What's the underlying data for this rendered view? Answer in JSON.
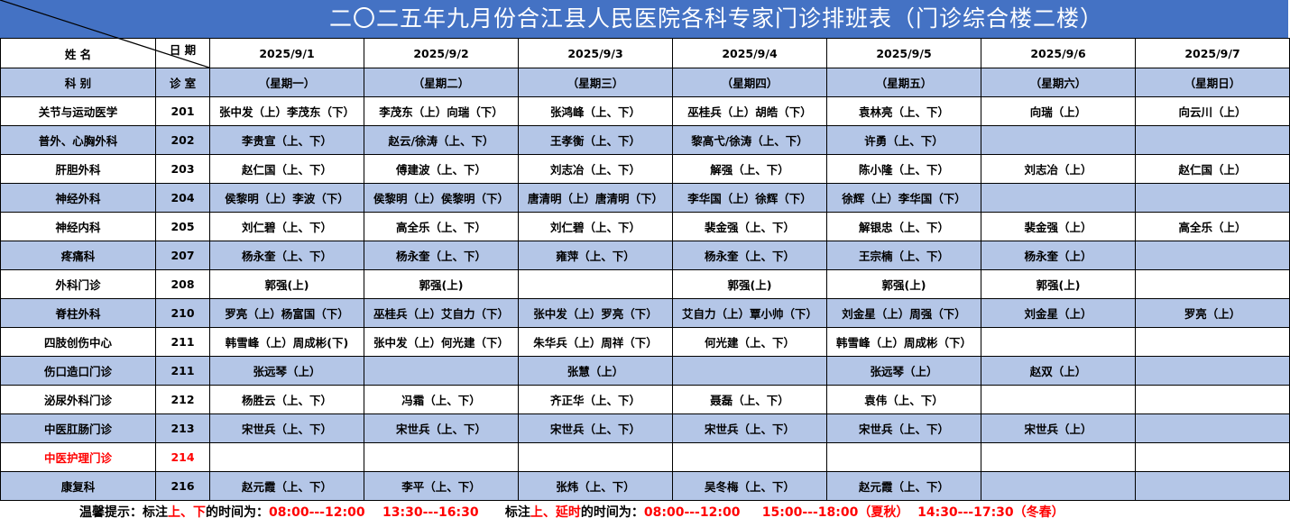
{
  "title": "二〇二五年九月份合江县人民医院各科专家门诊排班表（门诊综合楼二楼）",
  "header": {
    "name_label": "姓  名",
    "date_label": "日 期",
    "dept_label": "科  别",
    "room_label": "诊  室",
    "dates": [
      "2025/9/1",
      "2025/9/2",
      "2025/9/3",
      "2025/9/4",
      "2025/9/5",
      "2025/9/6",
      "2025/9/7"
    ],
    "weekdays": [
      "（星期一）",
      "（星期二）",
      "（星期三）",
      "（星期四）",
      "（星期五）",
      "（星期六）",
      "（星期日）"
    ]
  },
  "rows": [
    {
      "dept": "关节与运动医学",
      "room": "201",
      "cells": [
        "张中发（上）李茂东（下）",
        "李茂东（上）向瑞（下）",
        "张鸿峰（上、下）",
        "巫桂兵（上）胡皓（下）",
        "袁林亮（上、下）",
        "向瑞（上）",
        "向云川（上）"
      ]
    },
    {
      "dept": "普外、心胸外科",
      "room": "202",
      "cells": [
        "李贵宣（上、下）",
        "赵云/徐涛（上、下）",
        "王孝衡（上、下）",
        "黎高弋/徐涛（上、下）",
        "许勇（上、下）",
        "",
        ""
      ]
    },
    {
      "dept": "肝胆外科",
      "room": "203",
      "cells": [
        "赵仁国（上、下）",
        "傅建波（上、下）",
        "刘志冶（上、下）",
        "解强（上、下）",
        "陈小隆（上、下）",
        "刘志冶（上）",
        "赵仁国（上）"
      ]
    },
    {
      "dept": "神经外科",
      "room": "204",
      "cells": [
        "侯黎明（上）李波（下）",
        "侯黎明（上）侯黎明（下）",
        "唐清明（上）唐清明（下）",
        "李华国（上）徐辉（下）",
        "徐辉（上）李华国（下）",
        "",
        ""
      ]
    },
    {
      "dept": "神经内科",
      "room": "205",
      "cells": [
        "刘仁碧（上、下）",
        "高全乐（上、下）",
        "刘仁碧（上、下）",
        "裴金强（上、下）",
        "解银忠（上、下）",
        "裴金强（上）",
        "高全乐（上）"
      ]
    },
    {
      "dept": "疼痛科",
      "room": "207",
      "cells": [
        "杨永奎（上、下）",
        "杨永奎（上、下）",
        "雍萍（上、下）",
        "杨永奎（上、下）",
        "王宗楠（上、下）",
        "杨永奎（上）",
        ""
      ]
    },
    {
      "dept": "外科门诊",
      "room": "208",
      "cells": [
        "郭强(上)",
        "郭强(上)",
        "",
        "郭强(上)",
        "郭强(上)",
        "郭强(上)",
        ""
      ]
    },
    {
      "dept": "脊柱外科",
      "room": "210",
      "cells": [
        "罗亮（上）杨富国（下）",
        "巫桂兵（上）艾自力（下）",
        "张中发（上）罗亮（下）",
        "艾自力（上）覃小帅（下）",
        "刘金星（上）周强（下）",
        "刘金星（上）",
        "罗亮（上）"
      ]
    },
    {
      "dept": "四肢创伤中心",
      "room": "211",
      "cells": [
        "韩雪峰（上）周成彬(下)",
        "张中发（上）何光建（下）",
        "朱华兵（上）周祥（下）",
        "何光建（上、下）",
        "韩雪峰（上）周成彬（下）",
        "",
        ""
      ]
    },
    {
      "dept": "伤口造口门诊",
      "room": "211",
      "cells": [
        "张远琴（上）",
        "",
        "张慧（上）",
        "",
        "张远琴（上）",
        "赵双（上）",
        ""
      ]
    },
    {
      "dept": "泌尿外科门诊",
      "room": "212",
      "cells": [
        "杨胜云（上、下）",
        "冯霜（上、下）",
        "齐正华（上、下）",
        "聂磊（上、下）",
        "袁伟（上、下）",
        "",
        ""
      ]
    },
    {
      "dept": "中医肛肠门诊",
      "room": "213",
      "cells": [
        "宋世兵（上、下）",
        "宋世兵（上、下）",
        "宋世兵（上、下）",
        "宋世兵（上、下）",
        "宋世兵（上、下）",
        "宋世兵（上）",
        ""
      ]
    },
    {
      "dept": "中医护理门诊",
      "room": "214",
      "highlight": true,
      "cells": [
        "",
        "",
        "",
        "",
        "",
        "",
        ""
      ]
    },
    {
      "dept": "康复科",
      "room": "216",
      "cells": [
        "赵元霞（上、下）",
        "李平（上、下）",
        "张炜（上、下）",
        "吴冬梅（上、下）",
        "赵元霞（上、下）",
        "",
        ""
      ]
    }
  ],
  "footer": {
    "p1": "温馨提示：标注",
    "p2": "上、下",
    "p3": "的时间为：",
    "t1": "08:00---12:00    13:30---16:30",
    "p4": "      标注",
    "p5": "上、延时",
    "p6": "的时间为：",
    "t2": "08:00---12:00     15:00---18:00（夏秋）  14:30---17:30（冬春）"
  },
  "colors": {
    "title_bg": "#4472C4",
    "row_alt": "#B4C6E7",
    "highlight": "#FF0000"
  }
}
